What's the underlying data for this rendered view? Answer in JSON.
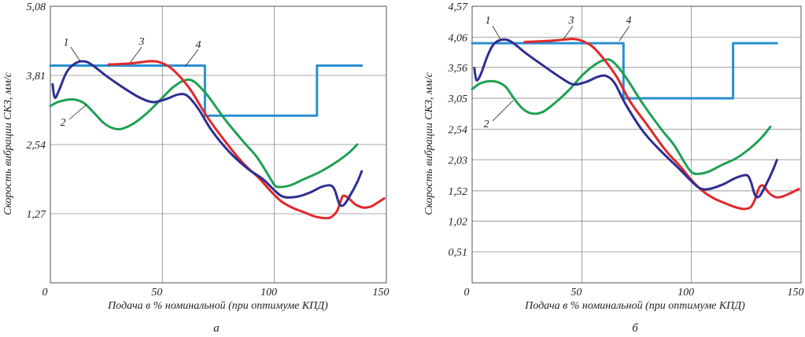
{
  "chart_data": [
    {
      "type": "line",
      "panel_label": "а",
      "xlabel": "Подача в % номинальной (при оптимуме КПД)",
      "ylabel": "Скорость вибрации СКЗ, мм/с",
      "xlim": [
        0,
        150
      ],
      "ylim": [
        0,
        5.08
      ],
      "x_ticks": [
        "0",
        "50",
        "100",
        "150"
      ],
      "y_ticks": [
        "1,27",
        "2,54",
        "3,81",
        "5,08"
      ],
      "grid": true,
      "colors": {
        "1": "#2e2f8f",
        "2": "#1fa054",
        "3": "#e0272b",
        "4": "#2b8fd0"
      },
      "series": [
        {
          "name": "1",
          "points": [
            [
              1,
              3.65
            ],
            [
              2,
              3.4
            ],
            [
              4,
              3.55
            ],
            [
              7,
              3.85
            ],
            [
              10,
              4.0
            ],
            [
              14,
              4.07
            ],
            [
              18,
              4.02
            ],
            [
              25,
              3.8
            ],
            [
              32,
              3.6
            ],
            [
              40,
              3.4
            ],
            [
              46,
              3.32
            ],
            [
              52,
              3.38
            ],
            [
              57,
              3.46
            ],
            [
              61,
              3.44
            ],
            [
              66,
              3.2
            ],
            [
              72,
              2.8
            ],
            [
              80,
              2.4
            ],
            [
              88,
              2.1
            ],
            [
              95,
              1.9
            ],
            [
              100,
              1.7
            ],
            [
              104,
              1.58
            ],
            [
              110,
              1.58
            ],
            [
              116,
              1.66
            ],
            [
              121,
              1.76
            ],
            [
              125,
              1.79
            ],
            [
              127,
              1.7
            ],
            [
              129,
              1.45
            ],
            [
              131,
              1.43
            ],
            [
              134,
              1.62
            ],
            [
              137,
              1.85
            ],
            [
              139,
              2.05
            ]
          ]
        },
        {
          "name": "2",
          "points": [
            [
              0,
              3.25
            ],
            [
              4,
              3.33
            ],
            [
              10,
              3.37
            ],
            [
              15,
              3.3
            ],
            [
              20,
              3.1
            ],
            [
              24,
              2.93
            ],
            [
              28,
              2.84
            ],
            [
              32,
              2.83
            ],
            [
              38,
              2.95
            ],
            [
              44,
              3.15
            ],
            [
              50,
              3.4
            ],
            [
              55,
              3.6
            ],
            [
              60,
              3.72
            ],
            [
              64,
              3.7
            ],
            [
              70,
              3.45
            ],
            [
              78,
              3.0
            ],
            [
              86,
              2.6
            ],
            [
              92,
              2.32
            ],
            [
              97,
              2.0
            ],
            [
              100,
              1.8
            ],
            [
              102,
              1.76
            ],
            [
              107,
              1.79
            ],
            [
              113,
              1.9
            ],
            [
              120,
              2.03
            ],
            [
              127,
              2.2
            ],
            [
              133,
              2.38
            ],
            [
              137,
              2.54
            ]
          ]
        },
        {
          "name": "3",
          "points": [
            [
              26,
              4.01
            ],
            [
              32,
              4.02
            ],
            [
              38,
              4.04
            ],
            [
              44,
              4.07
            ],
            [
              48,
              4.06
            ],
            [
              53,
              3.97
            ],
            [
              58,
              3.78
            ],
            [
              63,
              3.52
            ],
            [
              70,
              3.05
            ],
            [
              78,
              2.6
            ],
            [
              86,
              2.2
            ],
            [
              93,
              1.93
            ],
            [
              98,
              1.7
            ],
            [
              103,
              1.5
            ],
            [
              108,
              1.38
            ],
            [
              113,
              1.3
            ],
            [
              118,
              1.22
            ],
            [
              122,
              1.19
            ],
            [
              125,
              1.2
            ],
            [
              128,
              1.32
            ],
            [
              130,
              1.55
            ],
            [
              131,
              1.6
            ],
            [
              133,
              1.56
            ],
            [
              135,
              1.48
            ],
            [
              137,
              1.42
            ],
            [
              140,
              1.38
            ],
            [
              143,
              1.4
            ],
            [
              146,
              1.47
            ],
            [
              149,
              1.55
            ]
          ]
        },
        {
          "name": "4",
          "points": [
            [
              0,
              3.99
            ],
            [
              69,
              3.99
            ],
            [
              69,
              3.07
            ],
            [
              119,
              3.07
            ],
            [
              119,
              3.99
            ],
            [
              139,
              3.99
            ]
          ]
        }
      ],
      "annotations": [
        "1",
        "2",
        "3",
        "4"
      ]
    },
    {
      "type": "line",
      "panel_label": "б",
      "xlabel": "Подача в % номинальной (при оптимуме КПД)",
      "ylabel": "Скорость вибрации СКЗ, мм/с",
      "xlim": [
        0,
        150
      ],
      "ylim": [
        0,
        4.57
      ],
      "x_ticks": [
        "0",
        "50",
        "100",
        "150"
      ],
      "y_ticks": [
        "0,51",
        "1,02",
        "1,52",
        "2,03",
        "2,54",
        "3,05",
        "3,56",
        "4,06",
        "4,57"
      ],
      "grid": true,
      "colors": {
        "1": "#2e2f8f",
        "2": "#1fa054",
        "3": "#e0272b",
        "4": "#2b8fd0"
      },
      "series": [
        {
          "name": "1",
          "points": [
            [
              1,
              3.55
            ],
            [
              2,
              3.35
            ],
            [
              4,
              3.45
            ],
            [
              7,
              3.75
            ],
            [
              10,
              3.95
            ],
            [
              14,
              4.02
            ],
            [
              18,
              3.98
            ],
            [
              25,
              3.78
            ],
            [
              32,
              3.6
            ],
            [
              40,
              3.4
            ],
            [
              46,
              3.28
            ],
            [
              52,
              3.32
            ],
            [
              57,
              3.4
            ],
            [
              61,
              3.42
            ],
            [
              65,
              3.3
            ],
            [
              70,
              2.95
            ],
            [
              78,
              2.5
            ],
            [
              86,
              2.18
            ],
            [
              94,
              1.9
            ],
            [
              100,
              1.68
            ],
            [
              104,
              1.56
            ],
            [
              108,
              1.55
            ],
            [
              114,
              1.62
            ],
            [
              120,
              1.73
            ],
            [
              125,
              1.78
            ],
            [
              127,
              1.68
            ],
            [
              129,
              1.45
            ],
            [
              131,
              1.43
            ],
            [
              134,
              1.62
            ],
            [
              137,
              1.85
            ],
            [
              139,
              2.03
            ]
          ]
        },
        {
          "name": "2",
          "points": [
            [
              0,
              3.2
            ],
            [
              4,
              3.3
            ],
            [
              10,
              3.33
            ],
            [
              15,
              3.25
            ],
            [
              19,
              3.05
            ],
            [
              23,
              2.88
            ],
            [
              27,
              2.8
            ],
            [
              32,
              2.82
            ],
            [
              38,
              2.98
            ],
            [
              44,
              3.18
            ],
            [
              50,
              3.42
            ],
            [
              55,
              3.58
            ],
            [
              60,
              3.68
            ],
            [
              64,
              3.66
            ],
            [
              70,
              3.4
            ],
            [
              78,
              2.95
            ],
            [
              86,
              2.55
            ],
            [
              92,
              2.28
            ],
            [
              97,
              1.98
            ],
            [
              100,
              1.83
            ],
            [
              103,
              1.8
            ],
            [
              108,
              1.84
            ],
            [
              114,
              1.95
            ],
            [
              120,
              2.05
            ],
            [
              126,
              2.2
            ],
            [
              132,
              2.4
            ],
            [
              136,
              2.58
            ]
          ]
        },
        {
          "name": "3",
          "points": [
            [
              24,
              3.98
            ],
            [
              30,
              3.99
            ],
            [
              36,
              4.0
            ],
            [
              42,
              4.02
            ],
            [
              46,
              4.03
            ],
            [
              50,
              4.0
            ],
            [
              55,
              3.9
            ],
            [
              60,
              3.7
            ],
            [
              66,
              3.4
            ],
            [
              72,
              3.0
            ],
            [
              80,
              2.6
            ],
            [
              88,
              2.2
            ],
            [
              95,
              1.92
            ],
            [
              100,
              1.7
            ],
            [
              105,
              1.52
            ],
            [
              110,
              1.4
            ],
            [
              115,
              1.32
            ],
            [
              120,
              1.25
            ],
            [
              124,
              1.22
            ],
            [
              127,
              1.25
            ],
            [
              129,
              1.38
            ],
            [
              131,
              1.58
            ],
            [
              133,
              1.6
            ],
            [
              135,
              1.5
            ],
            [
              138,
              1.42
            ],
            [
              141,
              1.42
            ],
            [
              145,
              1.48
            ],
            [
              149,
              1.55
            ]
          ]
        },
        {
          "name": "4",
          "points": [
            [
              0,
              3.96
            ],
            [
              69,
              3.96
            ],
            [
              69,
              3.05
            ],
            [
              119,
              3.05
            ],
            [
              119,
              3.96
            ],
            [
              139,
              3.96
            ]
          ]
        }
      ],
      "annotations": [
        "1",
        "2",
        "3",
        "4"
      ]
    }
  ]
}
